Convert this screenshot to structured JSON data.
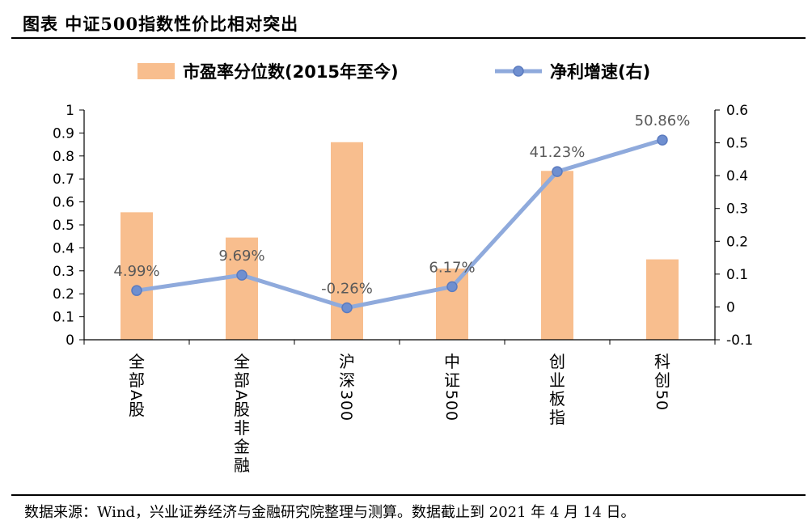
{
  "header": {
    "title": "图表  中证500指数性价比相对突出"
  },
  "footer": {
    "source": "数据来源：Wind，兴业证券经济与金融研究院整理与测算。数据截止到 2021 年 4 月 14 日。"
  },
  "chart_data": {
    "type": "bar",
    "categories": [
      "全部A股",
      "全部A股非金融",
      "沪深300",
      "中证500",
      "创业板指",
      "科创50"
    ],
    "series": [
      {
        "name": "市盈率分位数(2015年至今)",
        "type": "bar",
        "axis": "left",
        "color": "#F8BE8E",
        "values": [
          0.555,
          0.445,
          0.86,
          0.31,
          0.735,
          0.35
        ]
      },
      {
        "name": "净利增速(右)",
        "type": "line",
        "axis": "right",
        "color": "#8FAADC",
        "marker_fill": "#6F8FD0",
        "values": [
          0.0499,
          0.0969,
          -0.0026,
          0.0617,
          0.4123,
          0.5086
        ],
        "labels": [
          "4.99%",
          "9.69%",
          "-0.26%",
          "6.17%",
          "41.23%",
          "50.86%"
        ]
      }
    ],
    "left_axis": {
      "ylim": [
        0,
        1
      ],
      "ticks": [
        "0",
        "0.1",
        "0.2",
        "0.3",
        "0.4",
        "0.5",
        "0.6",
        "0.7",
        "0.8",
        "0.9",
        "1"
      ]
    },
    "right_axis": {
      "ylim": [
        -0.1,
        0.6
      ],
      "ticks": [
        "-0.1",
        "0",
        "0.1",
        "0.2",
        "0.3",
        "0.4",
        "0.5",
        "0.6"
      ]
    },
    "grid": false,
    "legend_position": "top"
  }
}
